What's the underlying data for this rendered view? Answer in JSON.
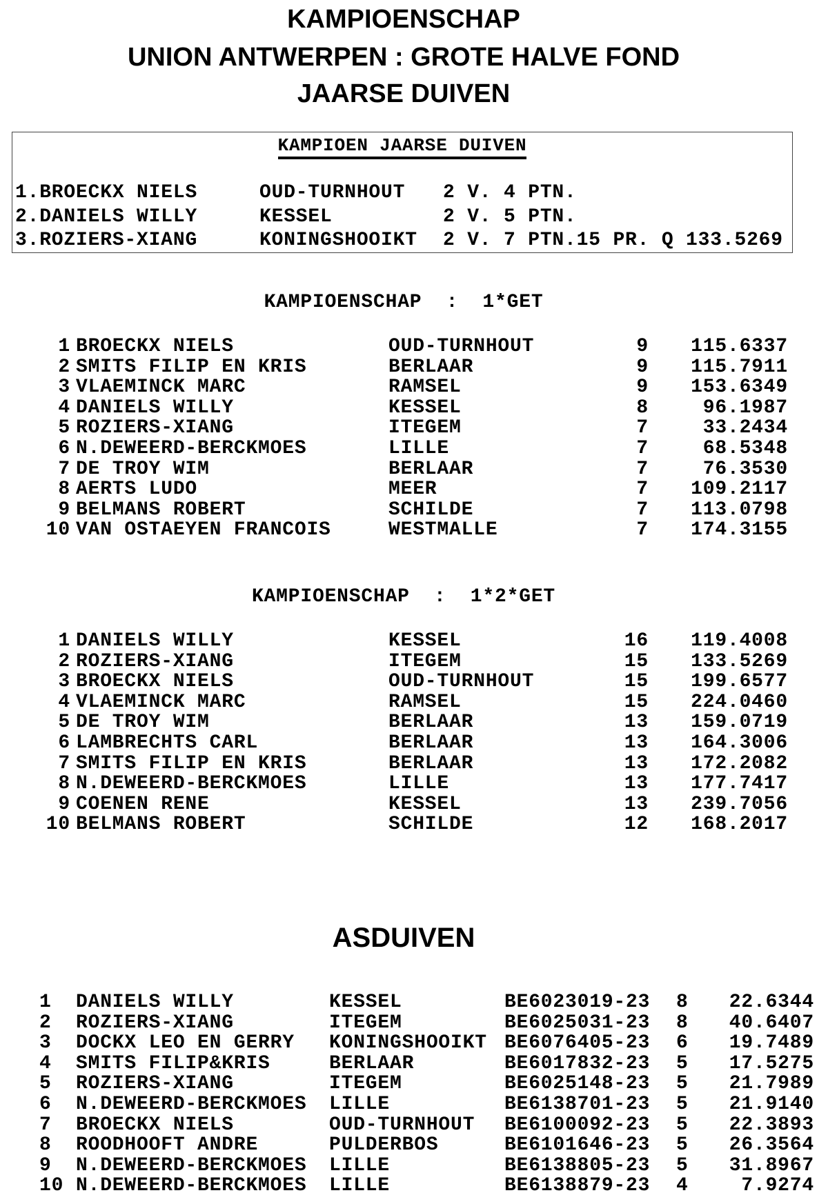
{
  "header": {
    "line1": "KAMPIOENSCHAP",
    "line2": "UNION ANTWERPEN : GROTE HALVE FOND",
    "line3": "JAARSE DUIVEN"
  },
  "kampioen_box": {
    "title": "KAMPIOEN JAARSE DUIVEN",
    "rows": [
      {
        "name": "1.BROECKX NIELS",
        "town": "OUD-TURNHOUT",
        "result": "2 V. 4 PTN."
      },
      {
        "name": "2.DANIELS WILLY",
        "town": "KESSEL",
        "result": "2 V. 5 PTN."
      },
      {
        "name": "3.ROZIERS-XIANG",
        "town": "KONINGSHOOIKT",
        "result": "2 V. 7 PTN.15 PR. Q 133.5269"
      }
    ]
  },
  "section_1get": {
    "title": "KAMPIOENSCHAP  :  1*GET",
    "rows": [
      [
        "1",
        "BROECKX NIELS",
        "OUD-TURNHOUT",
        "9",
        "115.6337"
      ],
      [
        "2",
        "SMITS FILIP EN KRIS",
        "BERLAAR",
        "9",
        "115.7911"
      ],
      [
        "3",
        "VLAEMINCK MARC",
        "RAMSEL",
        "9",
        "153.6349"
      ],
      [
        "4",
        "DANIELS WILLY",
        "KESSEL",
        "8",
        "96.1987"
      ],
      [
        "5",
        "ROZIERS-XIANG",
        "ITEGEM",
        "7",
        "33.2434"
      ],
      [
        "6",
        "N.DEWEERD-BERCKMOES",
        "LILLE",
        "7",
        "68.5348"
      ],
      [
        "7",
        "DE TROY WIM",
        "BERLAAR",
        "7",
        "76.3530"
      ],
      [
        "8",
        "AERTS LUDO",
        "MEER",
        "7",
        "109.2117"
      ],
      [
        "9",
        "BELMANS ROBERT",
        "SCHILDE",
        "7",
        "113.0798"
      ],
      [
        "10",
        "VAN OSTAEYEN FRANCOIS",
        "WESTMALLE",
        "7",
        "174.3155"
      ]
    ]
  },
  "section_12get": {
    "title": "KAMPIOENSCHAP  :  1*2*GET",
    "rows": [
      [
        "1",
        "DANIELS WILLY",
        "KESSEL",
        "16",
        "119.4008"
      ],
      [
        "2",
        "ROZIERS-XIANG",
        "ITEGEM",
        "15",
        "133.5269"
      ],
      [
        "3",
        "BROECKX NIELS",
        "OUD-TURNHOUT",
        "15",
        "199.6577"
      ],
      [
        "4",
        "VLAEMINCK MARC",
        "RAMSEL",
        "15",
        "224.0460"
      ],
      [
        "5",
        "DE TROY WIM",
        "BERLAAR",
        "13",
        "159.0719"
      ],
      [
        "6",
        "LAMBRECHTS CARL",
        "BERLAAR",
        "13",
        "164.3006"
      ],
      [
        "7",
        "SMITS FILIP EN KRIS",
        "BERLAAR",
        "13",
        "172.2082"
      ],
      [
        "8",
        "N.DEWEERD-BERCKMOES",
        "LILLE",
        "13",
        "177.7417"
      ],
      [
        "9",
        "COENEN RENE",
        "KESSEL",
        "13",
        "239.7056"
      ],
      [
        "10",
        "BELMANS ROBERT",
        "SCHILDE",
        "12",
        "168.2017"
      ]
    ]
  },
  "asduiven": {
    "title": "ASDUIVEN",
    "rows": [
      [
        "1",
        "DANIELS WILLY",
        "KESSEL",
        "BE6023019-23",
        "8",
        "22.6344"
      ],
      [
        "2",
        "ROZIERS-XIANG",
        "ITEGEM",
        "BE6025031-23",
        "8",
        "40.6407"
      ],
      [
        "3",
        "DOCKX LEO EN GERRY",
        "KONINGSHOOIKT",
        "BE6076405-23",
        "6",
        "19.7489"
      ],
      [
        "4",
        "SMITS FILIP&KRIS",
        "BERLAAR",
        "BE6017832-23",
        "5",
        "17.5275"
      ],
      [
        "5",
        "ROZIERS-XIANG",
        "ITEGEM",
        "BE6025148-23",
        "5",
        "21.7989"
      ],
      [
        "6",
        "N.DEWEERD-BERCKMOES",
        "LILLE",
        "BE6138701-23",
        "5",
        "21.9140"
      ],
      [
        "7",
        "BROECKX NIELS",
        "OUD-TURNHOUT",
        "BE6100092-23",
        "5",
        "22.3893"
      ],
      [
        "8",
        "ROODHOOFT ANDRE",
        "PULDERBOS",
        "BE6101646-23",
        "5",
        "26.3564"
      ],
      [
        "9",
        "N.DEWEERD-BERCKMOES",
        "LILLE",
        "BE6138805-23",
        "5",
        "31.8967"
      ],
      [
        "10",
        "N.DEWEERD-BERCKMOES",
        "LILLE",
        "BE6138879-23",
        "4",
        "7.9274"
      ]
    ]
  }
}
